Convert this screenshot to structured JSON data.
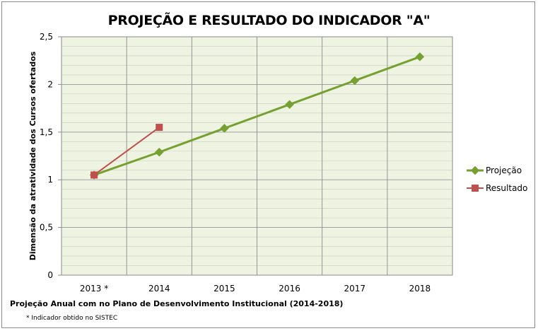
{
  "chart_data": {
    "type": "line",
    "title": "PROJEÇÃO E RESULTADO DO INDICADOR \"A\"",
    "xlabel": "Projeção Anual com no Plano de Desenvolvimento Institucional  (2014-2018)",
    "ylabel": "Dimensão da atratividade dos Cursos ofertados",
    "categories": [
      "2013 *",
      "2014",
      "2015",
      "2016",
      "2017",
      "2018"
    ],
    "ylim": [
      0,
      2.5
    ],
    "yticks": [
      "0",
      "0,5",
      "1",
      "1,5",
      "2",
      "2,5"
    ],
    "grid": true,
    "legend_position": "right",
    "series": [
      {
        "name": "Projeção",
        "color": "#77a033",
        "marker": "diamond",
        "values": [
          1.05,
          1.29,
          1.54,
          1.79,
          2.04,
          2.29
        ]
      },
      {
        "name": "Resultado",
        "color": "#c0504d",
        "marker": "square",
        "values": [
          1.05,
          1.55,
          null,
          null,
          null,
          null
        ]
      }
    ],
    "footnote": "* Indicador obtido no SISTEC",
    "plot_background": "#eef3e2"
  }
}
